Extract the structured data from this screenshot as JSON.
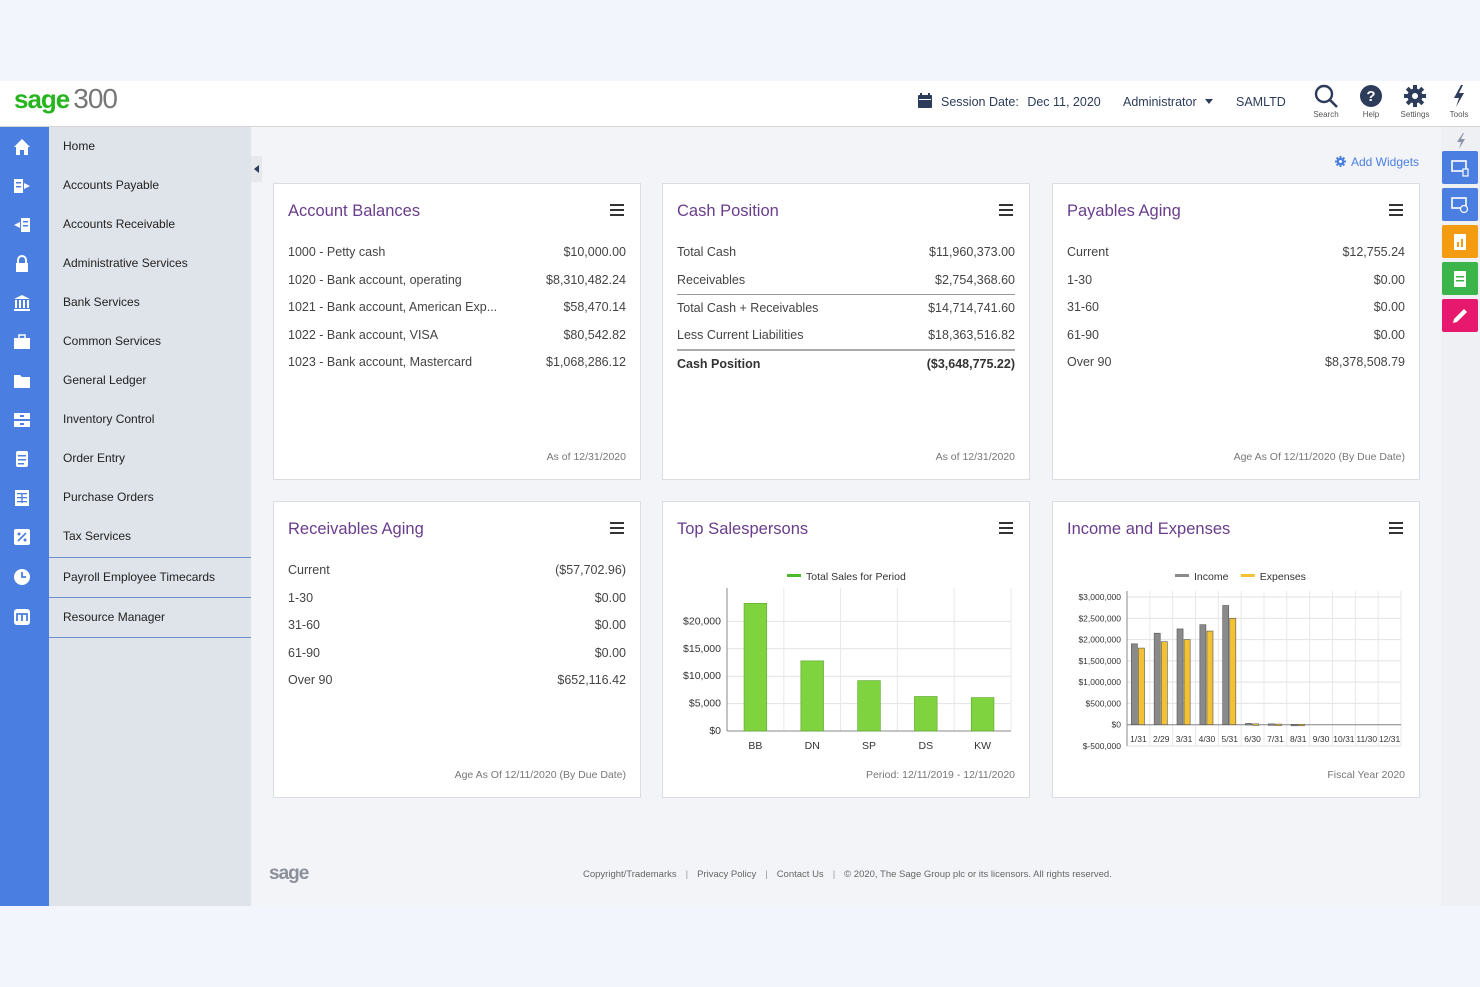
{
  "topbar": {
    "brand": "sage",
    "version": "300",
    "session_label": "Session Date:",
    "session_date": "Dec 11, 2020",
    "user": "Administrator",
    "company": "SAMLTD",
    "tools": [
      {
        "label": "Search",
        "icon": "search-icon"
      },
      {
        "label": "Help",
        "icon": "help-icon"
      },
      {
        "label": "Settings",
        "icon": "gear-icon"
      },
      {
        "label": "Tools",
        "icon": "lightning-icon"
      }
    ]
  },
  "menu": {
    "items": [
      {
        "label": "Home",
        "icon": "home-icon"
      },
      {
        "label": "Accounts Payable",
        "icon": "payable-icon"
      },
      {
        "label": "Accounts Receivable",
        "icon": "receivable-icon"
      },
      {
        "label": "Administrative Services",
        "icon": "lock-icon"
      },
      {
        "label": "Bank Services",
        "icon": "bank-icon"
      },
      {
        "label": "Common Services",
        "icon": "briefcase-icon"
      },
      {
        "label": "General Ledger",
        "icon": "folder-icon"
      },
      {
        "label": "Inventory Control",
        "icon": "inventory-icon"
      },
      {
        "label": "Order Entry",
        "icon": "document-icon"
      },
      {
        "label": "Purchase Orders",
        "icon": "grid-icon"
      },
      {
        "label": "Tax Services",
        "icon": "percent-icon"
      },
      {
        "label": "Payroll Employee Timecards",
        "icon": "clock-icon"
      },
      {
        "label": "Resource Manager",
        "icon": "resource-icon"
      }
    ]
  },
  "add_widgets": "Add Widgets",
  "widgets": {
    "account_balances": {
      "title": "Account Balances",
      "rows": [
        {
          "k": "1000 - Petty cash",
          "v": "$10,000.00"
        },
        {
          "k": "1020 - Bank account, operating",
          "v": "$8,310,482.24"
        },
        {
          "k": "1021 - Bank account, American Exp...",
          "v": "$58,470.14"
        },
        {
          "k": "1022 - Bank account, VISA",
          "v": "$80,542.82"
        },
        {
          "k": "1023 - Bank account, Mastercard",
          "v": "$1,068,286.12"
        }
      ],
      "footer": "As of 12/31/2020"
    },
    "cash_position": {
      "title": "Cash Position",
      "rows": [
        {
          "k": "Total Cash",
          "v": "$11,960,373.00"
        },
        {
          "k": "Receivables",
          "v": "$2,754,368.60"
        },
        {
          "k": "Total Cash + Receivables",
          "v": "$14,714,741.60"
        },
        {
          "k": "Less Current Liabilities",
          "v": "$18,363,516.82"
        },
        {
          "k": "Cash Position",
          "v": "($3,648,775.22)"
        }
      ],
      "footer": "As of 12/31/2020"
    },
    "payables_aging": {
      "title": "Payables Aging",
      "rows": [
        {
          "k": "Current",
          "v": "$12,755.24"
        },
        {
          "k": "1-30",
          "v": "$0.00"
        },
        {
          "k": "31-60",
          "v": "$0.00"
        },
        {
          "k": "61-90",
          "v": "$0.00"
        },
        {
          "k": "Over 90",
          "v": "$8,378,508.79"
        }
      ],
      "footer": "Age As Of 12/11/2020 (By Due Date)"
    },
    "receivables_aging": {
      "title": "Receivables Aging",
      "rows": [
        {
          "k": "Current",
          "v": "($57,702.96)"
        },
        {
          "k": "1-30",
          "v": "$0.00"
        },
        {
          "k": "31-60",
          "v": "$0.00"
        },
        {
          "k": "61-90",
          "v": "$0.00"
        },
        {
          "k": "Over 90",
          "v": "$652,116.42"
        }
      ],
      "footer": "Age As Of 12/11/2020 (By Due Date)"
    },
    "top_salespersons": {
      "title": "Top Salespersons",
      "footer": "Period: 12/11/2019 - 12/11/2020"
    },
    "income_expenses": {
      "title": "Income and Expenses",
      "footer": "Fiscal Year 2020"
    }
  },
  "chart_data": [
    {
      "type": "bar",
      "legend": [
        "Total Sales for Period"
      ],
      "categories": [
        "BB",
        "DN",
        "SP",
        "DS",
        "KW"
      ],
      "series": [
        {
          "name": "Total Sales for Period",
          "values": [
            23300,
            12800,
            9200,
            6300,
            6100
          ],
          "color": "#7fd33f"
        }
      ],
      "yticks": [
        "$0",
        "$5,000",
        "$10,000",
        "$15,000",
        "$20,000"
      ],
      "ylim": [
        0,
        25000
      ]
    },
    {
      "type": "bar",
      "legend": [
        "Income",
        "Expenses"
      ],
      "categories": [
        "1/31",
        "2/29",
        "3/31",
        "4/30",
        "5/31",
        "6/30",
        "7/31",
        "8/31",
        "9/30",
        "10/31",
        "11/30",
        "12/31"
      ],
      "x_tick_text": [
        "1/31",
        "2/29",
        "3/31",
        "4/30",
        "5/31",
        "6/30",
        "7/31",
        "8/31",
        "9/30",
        "10/31",
        "11/30",
        "12/31"
      ],
      "series": [
        {
          "name": "Income",
          "values": [
            1900000,
            2150000,
            2250000,
            2350000,
            2800000,
            30000,
            20000,
            10000,
            0,
            0,
            0,
            0
          ],
          "color": "#8a8a8a"
        },
        {
          "name": "Expenses",
          "values": [
            1800000,
            1950000,
            2000000,
            2200000,
            2500000,
            20000,
            15000,
            10000,
            0,
            0,
            0,
            0
          ],
          "color": "#f2c233"
        }
      ],
      "yticks": [
        "$-500,000",
        "$0",
        "$500,000",
        "$1,000,000",
        "$1,500,000",
        "$2,000,000",
        "$2,500,000",
        "$3,000,000"
      ],
      "ylim": [
        -500000,
        3000000
      ]
    }
  ],
  "footer": {
    "brand": "sage",
    "links": [
      "Copyright/Trademarks",
      "Privacy Policy",
      "Contact Us"
    ],
    "copyright": "© 2020, The Sage Group plc or its licensors. All rights reserved."
  }
}
